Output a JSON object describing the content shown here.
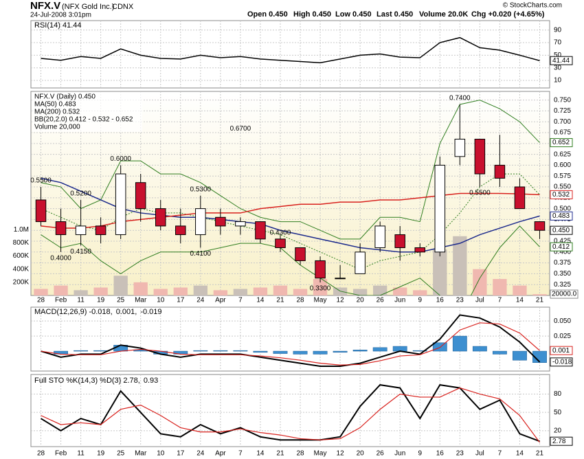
{
  "header": {
    "symbol": "NFX.V",
    "name": "(NFX Gold Inc.)",
    "exchange": "CDNX",
    "date": "24-Jul-2008 3:01pm",
    "quote": [
      "Open 0.450",
      "High 0.450",
      "Low 0.450",
      "Last 0.450",
      "Volume 20.0K",
      "Chg +0.020 (+4.65%)"
    ],
    "copyright": "© StockCharts.com"
  },
  "chart_data": [
    {
      "type": "rsi",
      "legend": "RSI(14) 41.44",
      "color": "#000000",
      "fill": "#5d7d3a",
      "values": [
        45,
        42,
        48,
        45,
        60,
        50,
        45,
        44,
        50,
        46,
        48,
        44,
        42,
        40,
        38,
        44,
        50,
        52,
        47,
        46,
        70,
        78,
        62,
        58,
        50,
        41.44
      ],
      "ylim": [
        -2,
        105
      ],
      "yticks": [
        10,
        30,
        50,
        70,
        90
      ],
      "last_labels": [
        {
          "value": 41.44,
          "label": "41.44",
          "color": "#000000"
        }
      ]
    },
    {
      "type": "candlestick",
      "title": "NFX.V (Daily) 0.450",
      "up_color": "#ffffff",
      "down_color": "#c8102e",
      "categories": [
        "28",
        "Feb",
        "11",
        "19",
        "25",
        "Mar",
        "10",
        "17",
        "24",
        "Apr",
        "7",
        "14",
        "21",
        "28",
        "May",
        "12",
        "20",
        "26",
        "Jun",
        "9",
        "16",
        "23",
        "Jul",
        "7",
        "14",
        "21"
      ],
      "open": [
        0.52,
        0.47,
        0.44,
        0.46,
        0.44,
        0.56,
        0.5,
        0.46,
        0.44,
        0.48,
        0.46,
        0.47,
        0.43,
        0.41,
        0.38,
        0.34,
        0.35,
        0.41,
        0.44,
        0.41,
        0.4,
        0.62,
        0.66,
        0.6,
        0.55,
        0.47
      ],
      "high": [
        0.55,
        0.5,
        0.52,
        0.48,
        0.6,
        0.58,
        0.52,
        0.5,
        0.53,
        0.5,
        0.48,
        0.47,
        0.44,
        0.41,
        0.39,
        0.37,
        0.42,
        0.47,
        0.46,
        0.42,
        0.62,
        0.74,
        0.66,
        0.67,
        0.57,
        0.47
      ],
      "low": [
        0.46,
        0.4,
        0.415,
        0.42,
        0.43,
        0.47,
        0.45,
        0.42,
        0.41,
        0.44,
        0.44,
        0.42,
        0.4,
        0.37,
        0.33,
        0.34,
        0.35,
        0.4,
        0.38,
        0.39,
        0.39,
        0.6,
        0.55,
        0.55,
        0.5,
        0.43
      ],
      "close": [
        0.47,
        0.44,
        0.46,
        0.44,
        0.58,
        0.5,
        0.46,
        0.44,
        0.5,
        0.46,
        0.47,
        0.43,
        0.41,
        0.38,
        0.34,
        0.34,
        0.4,
        0.46,
        0.41,
        0.4,
        0.6,
        0.66,
        0.58,
        0.57,
        0.5,
        0.45
      ],
      "series": [
        {
          "name": "MA(50) 0.483",
          "color": "#1c2a8c",
          "values": [
            0.57,
            0.56,
            0.54,
            0.52,
            0.5,
            0.49,
            0.485,
            0.48,
            0.48,
            0.475,
            0.47,
            0.465,
            0.45,
            0.44,
            0.43,
            0.42,
            0.41,
            0.405,
            0.4,
            0.4,
            0.41,
            0.42,
            0.44,
            0.455,
            0.47,
            0.483
          ]
        },
        {
          "name": "MA(200) 0.532",
          "color": "#d8201c",
          "values": [
            0.46,
            0.455,
            0.455,
            0.46,
            0.47,
            0.475,
            0.48,
            0.485,
            0.49,
            0.49,
            0.49,
            0.5,
            0.505,
            0.51,
            0.51,
            0.515,
            0.515,
            0.52,
            0.52,
            0.525,
            0.53,
            0.535,
            0.535,
            0.535,
            0.534,
            0.532
          ]
        }
      ],
      "bollinger": {
        "name": "BB(20,2.0) 0.412 - 0.532 - 0.652",
        "color": "#2e7d1e",
        "upper": [
          0.56,
          0.55,
          0.5,
          0.52,
          0.61,
          0.61,
          0.58,
          0.58,
          0.56,
          0.53,
          0.5,
          0.48,
          0.47,
          0.47,
          0.45,
          0.43,
          0.43,
          0.48,
          0.48,
          0.47,
          0.65,
          0.74,
          0.75,
          0.73,
          0.7,
          0.652
        ],
        "middle": [
          0.5,
          0.48,
          0.46,
          0.45,
          0.48,
          0.5,
          0.49,
          0.49,
          0.48,
          0.47,
          0.46,
          0.45,
          0.44,
          0.42,
          0.4,
          0.38,
          0.36,
          0.38,
          0.39,
          0.4,
          0.44,
          0.49,
          0.55,
          0.58,
          0.58,
          0.532
        ],
        "lower": [
          0.44,
          0.41,
          0.42,
          0.38,
          0.35,
          0.38,
          0.4,
          0.4,
          0.4,
          0.41,
          0.42,
          0.42,
          0.41,
          0.37,
          0.34,
          0.31,
          0.3,
          0.3,
          0.32,
          0.34,
          0.3,
          0.25,
          0.34,
          0.41,
          0.46,
          0.412
        ]
      },
      "volume": {
        "name": "Volume 20,000",
        "up_color": "#c9c0b8",
        "down_color": "#f0b8b0",
        "values": [
          100000,
          150000,
          80000,
          120000,
          300000,
          200000,
          100000,
          120000,
          150000,
          80000,
          100000,
          120000,
          150000,
          100000,
          250000,
          120000,
          100000,
          150000,
          120000,
          80000,
          700000,
          900000,
          400000,
          250000,
          150000,
          20000
        ],
        "vlim": [
          0,
          3100000
        ],
        "vticks": [
          {
            "value": 200000,
            "label": "200K"
          },
          {
            "value": 400000,
            "label": "400K"
          },
          {
            "value": 600000,
            "label": "600K"
          },
          {
            "value": 800000,
            "label": "800K"
          },
          {
            "value": 1000000,
            "label": "1.0M"
          }
        ],
        "last_label": {
          "value": 20000,
          "label": "20000.0"
        }
      },
      "ylim": [
        0.3,
        0.77
      ],
      "yticks": [
        {
          "value": 0.325,
          "label": "0.325"
        },
        {
          "value": 0.35,
          "label": "0.350"
        },
        {
          "value": 0.375,
          "label": "0.375"
        },
        {
          "value": 0.4,
          "label": "0.400"
        },
        {
          "value": 0.425,
          "label": "0.425"
        },
        {
          "value": 0.45,
          "label": "0.450"
        },
        {
          "value": 0.475,
          "label": "0.475"
        },
        {
          "value": 0.5,
          "label": "0.500"
        },
        {
          "value": 0.525,
          "label": "0.525"
        },
        {
          "value": 0.55,
          "label": "0.550"
        },
        {
          "value": 0.575,
          "label": "0.575"
        },
        {
          "value": 0.6,
          "label": "0.600"
        },
        {
          "value": 0.625,
          "label": "0.625"
        },
        {
          "value": 0.65,
          "label": "0.650"
        },
        {
          "value": 0.675,
          "label": "0.675"
        },
        {
          "value": 0.7,
          "label": "0.700"
        },
        {
          "value": 0.725,
          "label": "0.725"
        },
        {
          "value": 0.75,
          "label": "0.750"
        }
      ],
      "last_labels": [
        {
          "value": 0.652,
          "label": "0.652",
          "color": "#2e7d1e"
        },
        {
          "value": 0.532,
          "label": "0.532",
          "color": "#d8201c"
        },
        {
          "value": 0.483,
          "label": "0.483",
          "color": "#1c2a8c"
        },
        {
          "value": 0.45,
          "label": "0.450",
          "color": "#000000"
        },
        {
          "value": 0.412,
          "label": "0.412",
          "color": "#2e7d1e"
        }
      ],
      "annotations": [
        {
          "at": "28",
          "value": 0.55,
          "label": "0.5500"
        },
        {
          "at": "11",
          "value": 0.52,
          "label": "0.5200"
        },
        {
          "at": "Feb",
          "value": 0.4,
          "label": "0.4000"
        },
        {
          "at": "11",
          "value": 0.415,
          "label": "0.4150"
        },
        {
          "at": "25",
          "value": 0.6,
          "label": "0.6000"
        },
        {
          "at": "24",
          "value": 0.53,
          "label": "0.5300"
        },
        {
          "at": "24",
          "value": 0.41,
          "label": "0.4100"
        },
        {
          "at": "May",
          "value": 0.33,
          "label": "0.3300"
        },
        {
          "at": "23",
          "value": 0.74,
          "label": "0.7400"
        },
        {
          "at": "7",
          "value": 0.67,
          "label": "0.6700"
        },
        {
          "at": "Jul",
          "value": 0.55,
          "label": "0.5500"
        },
        {
          "at": "21",
          "value": 0.43,
          "label": "0.4300"
        }
      ]
    },
    {
      "type": "macd",
      "legend": [
        {
          "text": "MACD(12,26,9) -0.018,",
          "color": "#000000"
        },
        {
          "text": "0.001,",
          "color": "#d8201c"
        },
        {
          "text": "-0.019",
          "color": "#3d8fd0"
        }
      ],
      "series": [
        {
          "color": "#000000",
          "values": [
            0,
            -0.01,
            -0.005,
            -0.005,
            0.01,
            0.005,
            -0.005,
            -0.01,
            -0.005,
            -0.005,
            -0.005,
            -0.01,
            -0.015,
            -0.02,
            -0.025,
            -0.025,
            -0.02,
            -0.01,
            0.0,
            -0.005,
            0.02,
            0.06,
            0.055,
            0.04,
            0.015,
            -0.018
          ]
        },
        {
          "color": "#d8201c",
          "values": [
            0,
            -0.005,
            -0.006,
            -0.006,
            0,
            0.003,
            0,
            -0.005,
            -0.006,
            -0.006,
            -0.006,
            -0.008,
            -0.011,
            -0.015,
            -0.02,
            -0.023,
            -0.022,
            -0.016,
            -0.008,
            -0.006,
            0.006,
            0.035,
            0.047,
            0.045,
            0.03,
            0.001
          ]
        }
      ],
      "histogram": {
        "color": "#3d8fd0",
        "values": [
          0,
          -0.005,
          0.001,
          0.001,
          0.01,
          0.002,
          -0.005,
          -0.005,
          0.001,
          0.001,
          0.001,
          -0.002,
          -0.004,
          -0.005,
          -0.005,
          -0.002,
          0.002,
          0.006,
          0.008,
          0.001,
          0.014,
          0.025,
          0.008,
          -0.005,
          -0.015,
          -0.019
        ]
      },
      "ylim": [
        -0.033,
        0.073
      ],
      "yticks": [
        {
          "value": 0.025,
          "label": "0.025"
        },
        {
          "value": 0.05,
          "label": "0.050"
        }
      ],
      "last_labels": [
        {
          "value": 0.001,
          "label": "0.001",
          "color": "#d8201c"
        },
        {
          "value": -0.018,
          "label": "-0.018",
          "color": "#000000"
        }
      ]
    },
    {
      "type": "stochastic",
      "legend": [
        {
          "text": "Full STO %K(14,3) %D(3) 2.78,",
          "color": "#000000"
        },
        {
          "text": "0.93",
          "color": "#d8201c"
        }
      ],
      "categories": [
        "28",
        "Feb",
        "11",
        "19",
        "25",
        "Mar",
        "10",
        "17",
        "24",
        "Apr",
        "7",
        "14",
        "21",
        "28",
        "May",
        "12",
        "20",
        "26",
        "Jun",
        "9",
        "16",
        "23",
        "Jul",
        "7",
        "14",
        "21"
      ],
      "series": [
        {
          "color": "#000000",
          "values": [
            40,
            20,
            40,
            30,
            85,
            50,
            15,
            10,
            30,
            15,
            25,
            10,
            5,
            5,
            5,
            10,
            60,
            95,
            90,
            40,
            95,
            90,
            55,
            70,
            15,
            2.78
          ]
        },
        {
          "color": "#d8201c",
          "values": [
            45,
            30,
            33,
            30,
            55,
            62,
            45,
            25,
            18,
            18,
            23,
            17,
            13,
            7,
            5,
            7,
            25,
            55,
            80,
            75,
            75,
            90,
            80,
            72,
            45,
            0.93
          ]
        }
      ],
      "ylim": [
        -6,
        112
      ],
      "yticks": [
        20,
        50,
        80
      ],
      "last_labels": [
        {
          "value": 2.78,
          "label": "2.78",
          "color": "#000000"
        }
      ]
    }
  ]
}
